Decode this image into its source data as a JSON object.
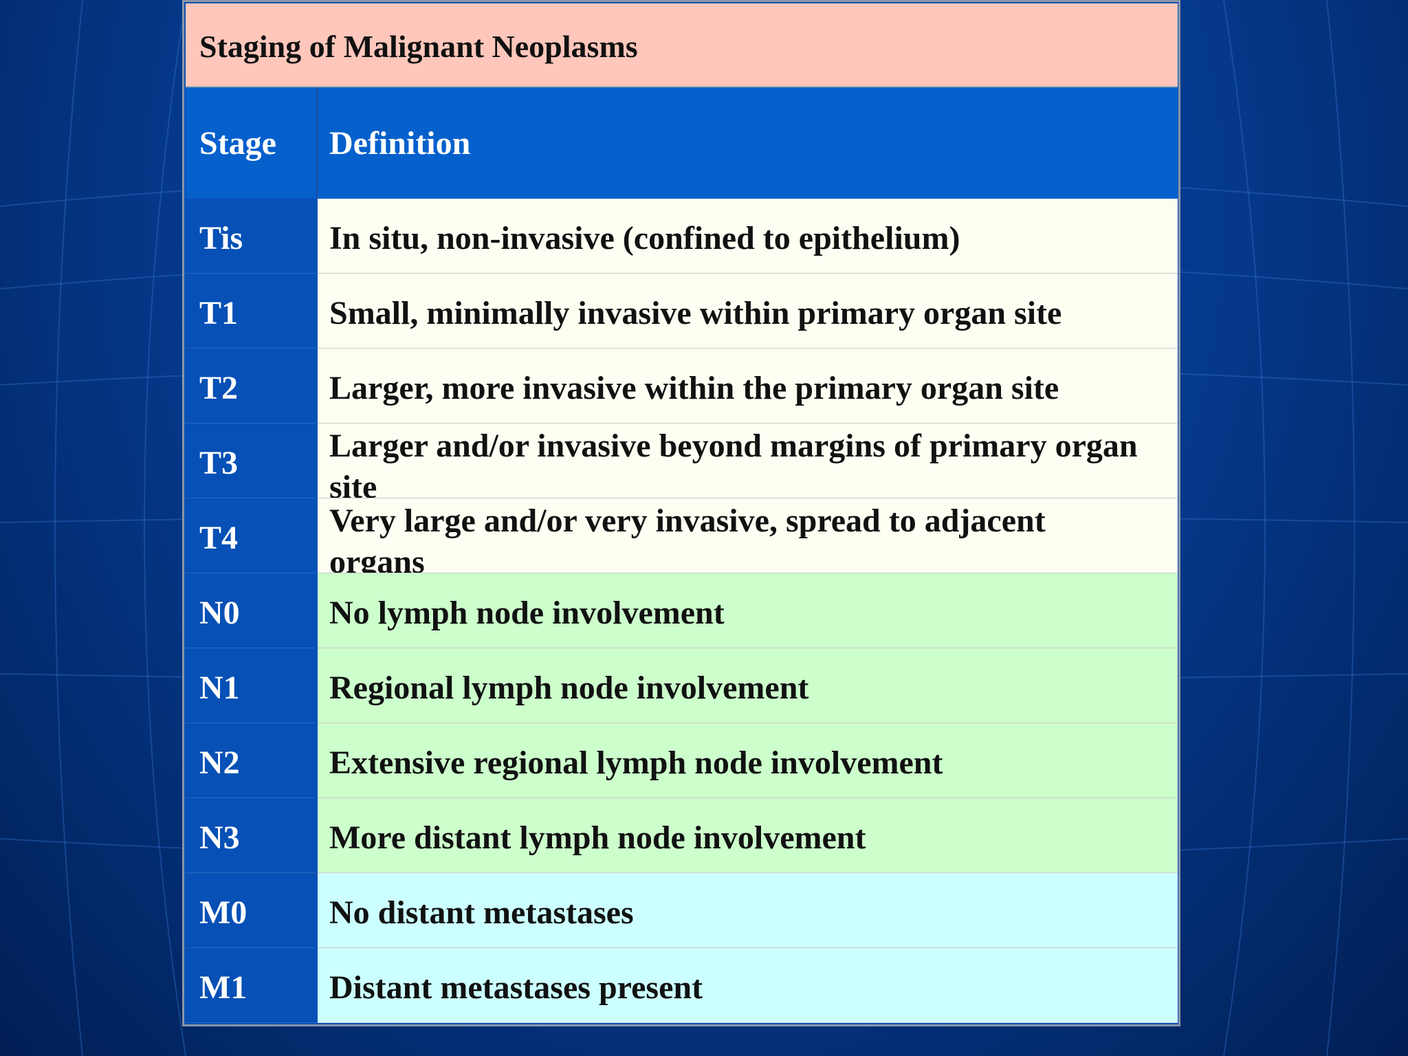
{
  "table": {
    "title": "Staging of Malignant Neoplasms",
    "headers": {
      "stage": "Stage",
      "definition": "Definition"
    },
    "rows": [
      {
        "stage": "Tis",
        "definition": "In situ, non-invasive (confined to epithelium)",
        "group": "T"
      },
      {
        "stage": "T1",
        "definition": "Small, minimally invasive within primary organ site",
        "group": "T"
      },
      {
        "stage": "T2",
        "definition": "Larger, more invasive within the primary organ site",
        "group": "T"
      },
      {
        "stage": "T3",
        "definition": "Larger and/or invasive beyond margins of primary organ site",
        "group": "T"
      },
      {
        "stage": "T4",
        "definition": "Very large and/or very invasive, spread to adjacent organs",
        "group": "T"
      },
      {
        "stage": "N0",
        "definition": "No lymph node involvement",
        "group": "N"
      },
      {
        "stage": "N1",
        "definition": "Regional lymph node involvement",
        "group": "N"
      },
      {
        "stage": "N2",
        "definition": "Extensive regional lymph node involvement",
        "group": "N"
      },
      {
        "stage": "N3",
        "definition": "More distant lymph node involvement",
        "group": "N"
      },
      {
        "stage": "M0",
        "definition": "No distant metastases",
        "group": "M"
      },
      {
        "stage": "M1",
        "definition": "Distant metastases present",
        "group": "M"
      }
    ]
  },
  "colors": {
    "title_bg": "#ffc7bb",
    "header_bg": "#0560cc",
    "stage_bg": "#0650b6",
    "t_group_bg": "#fefff2",
    "n_group_bg": "#ccffcc",
    "m_group_bg": "#ccffff"
  }
}
